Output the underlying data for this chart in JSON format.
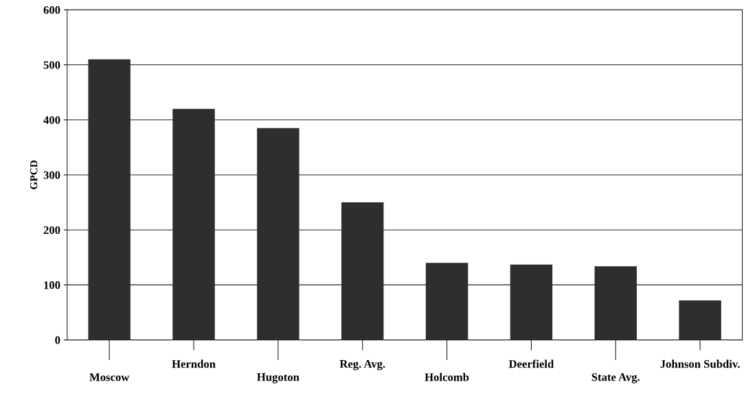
{
  "chart_data": {
    "type": "bar",
    "ylabel": "GPCD",
    "categories": [
      "Moscow",
      "Herndon",
      "Hugoton",
      "Reg. Avg.",
      "Holcomb",
      "Deerfield",
      "State Avg.",
      "Johnson Subdiv."
    ],
    "values": [
      510,
      420,
      385,
      250,
      140,
      137,
      134,
      72
    ],
    "color": "#2e2e2e",
    "ylim": [
      0,
      600
    ],
    "yticks": [
      0,
      100,
      200,
      300,
      400,
      500,
      600
    ],
    "grid": "y"
  }
}
